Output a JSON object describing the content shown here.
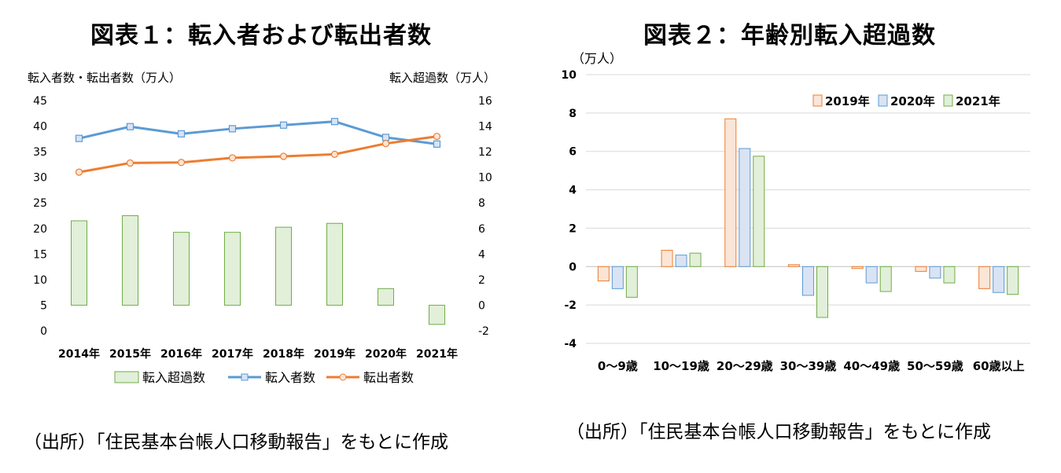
{
  "page": {
    "title1": "図表１：転入者および転出者数",
    "title2": "図表２：年齢別転入超過数",
    "source1": "（出所）「住民基本台帳人口移動報告」をもとに作成",
    "source2": "（出所）「住民基本台帳人口移動報告」をもとに作成"
  },
  "chart_data": [
    {
      "type": "bar+line",
      "title": "図表１：転入者および転出者数",
      "ylabel_left": "転入者数・転出者数（万人）",
      "ylabel_right": "転入超過数（万人）",
      "categories": [
        "2014年",
        "2015年",
        "2016年",
        "2017年",
        "2018年",
        "2019年",
        "2020年",
        "2021年"
      ],
      "ylim_left": [
        0,
        45
      ],
      "yticks_left": [
        "0",
        "5",
        "10",
        "15",
        "20",
        "25",
        "30",
        "35",
        "40",
        "45"
      ],
      "ylim_right": [
        -2,
        16
      ],
      "yticks_right": [
        "-2",
        "0",
        "2",
        "4",
        "6",
        "8",
        "10",
        "12",
        "14",
        "16"
      ],
      "legend": [
        "転入超過数",
        "転入者数",
        "転出者数"
      ],
      "series": [
        {
          "name": "転入超過数",
          "kind": "bar",
          "axis": "right",
          "color": "#e2efd9",
          "stroke": "#70ad47",
          "values": [
            6.6,
            7.0,
            5.7,
            5.7,
            6.1,
            6.4,
            1.3,
            -1.5
          ]
        },
        {
          "name": "転入者数",
          "kind": "line",
          "axis": "left",
          "color": "#5b9bd5",
          "values": [
            37.6,
            39.9,
            38.5,
            39.5,
            40.2,
            40.9,
            37.8,
            36.5
          ]
        },
        {
          "name": "転出者数",
          "kind": "line",
          "axis": "left",
          "color": "#ed7d31",
          "values": [
            31.0,
            32.8,
            32.9,
            33.8,
            34.1,
            34.5,
            36.6,
            38.0
          ]
        }
      ],
      "grid": false,
      "legend_position": "bottom"
    },
    {
      "type": "bar",
      "title": "図表２：年齢別転入超過数",
      "ylabel": "（万人）",
      "categories": [
        "0～9歳",
        "10～19歳",
        "20～29歳",
        "30～39歳",
        "40～49歳",
        "50～59歳",
        "60歳以上"
      ],
      "ylim": [
        -4,
        10
      ],
      "yticks": [
        "-4",
        "-2",
        "0",
        "2",
        "4",
        "6",
        "8",
        "10"
      ],
      "series": [
        {
          "name": "2019年",
          "fill": "#fbe5d6",
          "stroke": "#ed7d31",
          "values": [
            -0.75,
            0.85,
            7.7,
            0.1,
            -0.1,
            -0.25,
            -1.15
          ]
        },
        {
          "name": "2020年",
          "fill": "#dae3f3",
          "stroke": "#5b9bd5",
          "values": [
            -1.15,
            0.6,
            6.15,
            -1.5,
            -0.85,
            -0.6,
            -1.35
          ]
        },
        {
          "name": "2021年",
          "fill": "#e2efd9",
          "stroke": "#70ad47",
          "values": [
            -1.6,
            0.7,
            5.75,
            -2.65,
            -1.3,
            -0.85,
            -1.45
          ]
        }
      ],
      "grid": true,
      "legend_position": "top-right"
    }
  ]
}
